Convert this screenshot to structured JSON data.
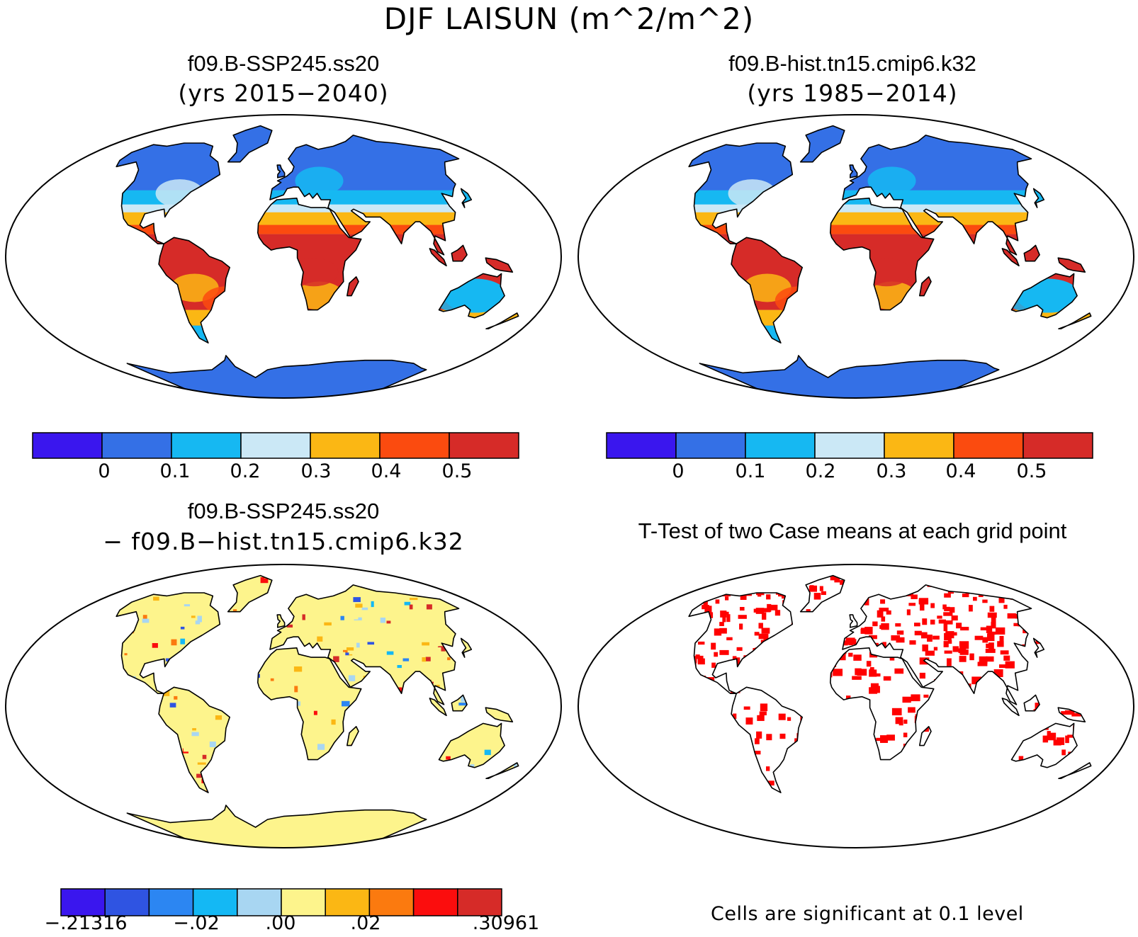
{
  "figure": {
    "title": "DJF LAISUN (m^2/m^2)"
  },
  "panels": {
    "top_left": {
      "case": "f09.B-SSP245.ss20",
      "years": "(yrs 2015−2040)"
    },
    "top_right": {
      "case": "f09.B-hist.tn15.cmip6.k32",
      "years": "(yrs 1985−2014)"
    },
    "bottom_left": {
      "line1": "f09.B-SSP245.ss20",
      "line2": "− f09.B−hist.tn15.cmip6.k32"
    },
    "bottom_right": {
      "title": "T-Test of two Case means at each grid point",
      "note": "Cells are significant at 0.1 level"
    }
  },
  "colorbars": {
    "abs": {
      "colors": [
        "#3a16ee",
        "#3470e6",
        "#16b8f2",
        "#cbe8f6",
        "#fbb714",
        "#fb4b0f",
        "#d62b28"
      ],
      "labels": [
        "0",
        "0.1",
        "0.2",
        "0.3",
        "0.4",
        "0.5"
      ]
    },
    "diff": {
      "colors": [
        "#3a16ee",
        "#2f54e2",
        "#2c86f2",
        "#14b8f4",
        "#a8d6f2",
        "#fdf48c",
        "#fbb714",
        "#fb7a0f",
        "#fb0d0d",
        "#d62b28"
      ],
      "labels": [
        "−.21316",
        "−.02",
        ".00",
        ".02",
        ".30961"
      ]
    }
  },
  "maps": {
    "ocean_color": "#ffffff",
    "outline_color": "#000000",
    "significance_color": "#ff0000"
  }
}
